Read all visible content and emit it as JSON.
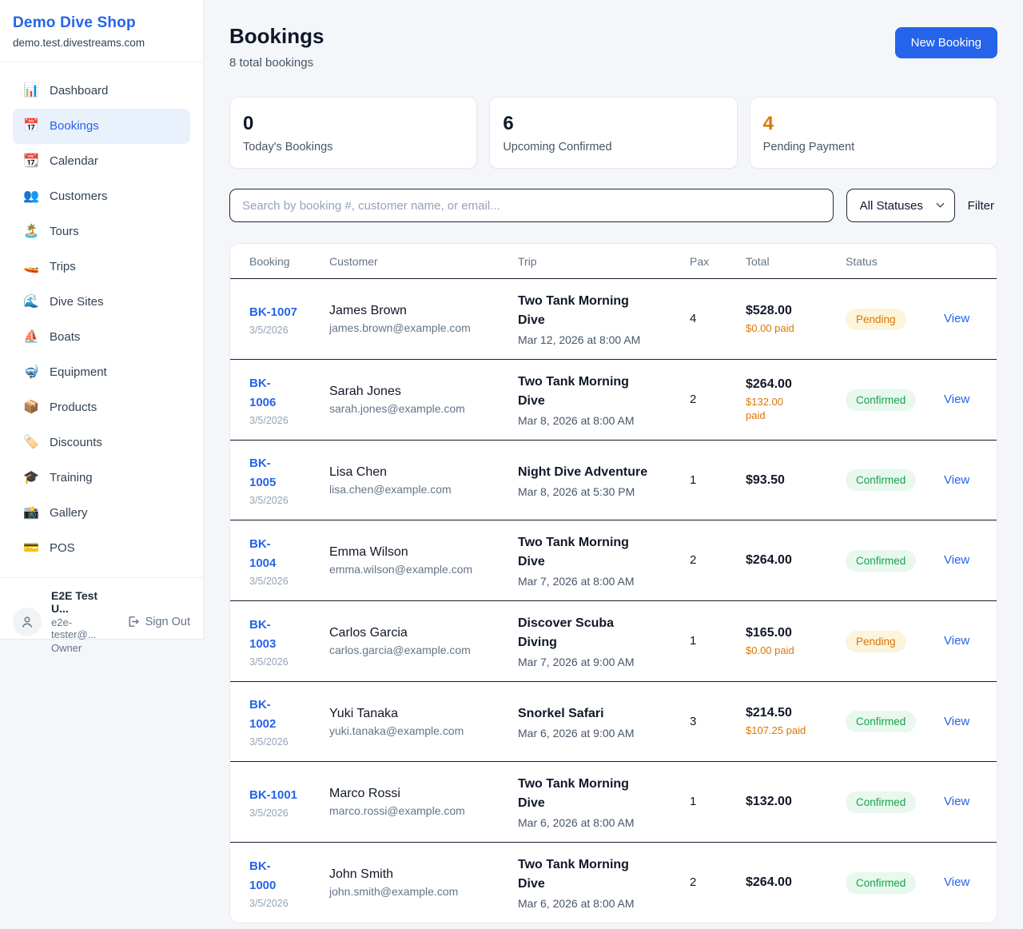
{
  "sidebar": {
    "shop_name": "Demo Dive Shop",
    "shop_domain": "demo.test.divestreams.com",
    "nav": [
      {
        "label": "Dashboard",
        "icon": "📊",
        "active": false
      },
      {
        "label": "Bookings",
        "icon": "📅",
        "active": true
      },
      {
        "label": "Calendar",
        "icon": "📆",
        "active": false
      },
      {
        "label": "Customers",
        "icon": "👥",
        "active": false
      },
      {
        "label": "Tours",
        "icon": "🏝️",
        "active": false
      },
      {
        "label": "Trips",
        "icon": "🚤",
        "active": false
      },
      {
        "label": "Dive Sites",
        "icon": "🌊",
        "active": false
      },
      {
        "label": "Boats",
        "icon": "⛵",
        "active": false
      },
      {
        "label": "Equipment",
        "icon": "🤿",
        "active": false
      },
      {
        "label": "Products",
        "icon": "📦",
        "active": false
      },
      {
        "label": "Discounts",
        "icon": "🏷️",
        "active": false
      },
      {
        "label": "Training",
        "icon": "🎓",
        "active": false
      },
      {
        "label": "Gallery",
        "icon": "📸",
        "active": false
      },
      {
        "label": "POS",
        "icon": "💳",
        "active": false
      }
    ],
    "user": {
      "name": "E2E Test U...",
      "email": "e2e-tester@...",
      "role": "Owner",
      "sign_out_label": "Sign Out"
    }
  },
  "header": {
    "title": "Bookings",
    "subtitle": "8 total bookings",
    "new_booking_label": "New Booking"
  },
  "stats": [
    {
      "value": "0",
      "label": "Today's Bookings",
      "accent": false
    },
    {
      "value": "6",
      "label": "Upcoming Confirmed",
      "accent": false
    },
    {
      "value": "4",
      "label": "Pending Payment",
      "accent": true
    }
  ],
  "filters": {
    "search_placeholder": "Search by booking #, customer name, or email...",
    "status_selected": "All Statuses",
    "filter_label": "Filter"
  },
  "table": {
    "columns": [
      "Booking",
      "Customer",
      "Trip",
      "Pax",
      "Total",
      "Status"
    ],
    "view_label": "View",
    "rows": [
      {
        "id": "BK-1007",
        "date": "3/5/2026",
        "customer": "James Brown",
        "email": "james.brown@example.com",
        "trip": "Two Tank Morning\nDive",
        "trip_datetime": "Mar 12, 2026 at 8:00 AM",
        "pax": "4",
        "total": "$528.00",
        "paid": "$0.00 paid",
        "status": "Pending"
      },
      {
        "id": "BK-\n1006",
        "date": "3/5/2026",
        "customer": "Sarah Jones",
        "email": "sarah.jones@example.com",
        "trip": "Two Tank Morning\nDive",
        "trip_datetime": "Mar 8, 2026 at 8:00 AM",
        "pax": "2",
        "total": "$264.00",
        "paid": "$132.00\npaid",
        "status": "Confirmed"
      },
      {
        "id": "BK-\n1005",
        "date": "3/5/2026",
        "customer": "Lisa Chen",
        "email": "lisa.chen@example.com",
        "trip": "Night Dive Adventure",
        "trip_datetime": "Mar 8, 2026 at 5:30 PM",
        "pax": "1",
        "total": "$93.50",
        "paid": "",
        "status": "Confirmed"
      },
      {
        "id": "BK-\n1004",
        "date": "3/5/2026",
        "customer": "Emma Wilson",
        "email": "emma.wilson@example.com",
        "trip": "Two Tank Morning\nDive",
        "trip_datetime": "Mar 7, 2026 at 8:00 AM",
        "pax": "2",
        "total": "$264.00",
        "paid": "",
        "status": "Confirmed"
      },
      {
        "id": "BK-\n1003",
        "date": "3/5/2026",
        "customer": "Carlos Garcia",
        "email": "carlos.garcia@example.com",
        "trip": "Discover Scuba\nDiving",
        "trip_datetime": "Mar 7, 2026 at 9:00 AM",
        "pax": "1",
        "total": "$165.00",
        "paid": "$0.00 paid",
        "status": "Pending"
      },
      {
        "id": "BK-\n1002",
        "date": "3/5/2026",
        "customer": "Yuki Tanaka",
        "email": "yuki.tanaka@example.com",
        "trip": "Snorkel Safari",
        "trip_datetime": "Mar 6, 2026 at 9:00 AM",
        "pax": "3",
        "total": "$214.50",
        "paid": "$107.25 paid",
        "status": "Confirmed"
      },
      {
        "id": "BK-1001",
        "date": "3/5/2026",
        "customer": "Marco Rossi",
        "email": "marco.rossi@example.com",
        "trip": "Two Tank Morning\nDive",
        "trip_datetime": "Mar 6, 2026 at 8:00 AM",
        "pax": "1",
        "total": "$132.00",
        "paid": "",
        "status": "Confirmed"
      },
      {
        "id": "BK-\n1000",
        "date": "3/5/2026",
        "customer": "John Smith",
        "email": "john.smith@example.com",
        "trip": "Two Tank Morning\nDive",
        "trip_datetime": "Mar 6, 2026 at 8:00 AM",
        "pax": "2",
        "total": "$264.00",
        "paid": "",
        "status": "Confirmed"
      }
    ]
  },
  "colors": {
    "brand_blue": "#2563eb",
    "pending_text": "#d97706",
    "pending_bg": "#fdf4dc",
    "confirmed_text": "#16a34a",
    "confirmed_bg": "#e8f8ee",
    "paid_orange": "#d97706"
  }
}
